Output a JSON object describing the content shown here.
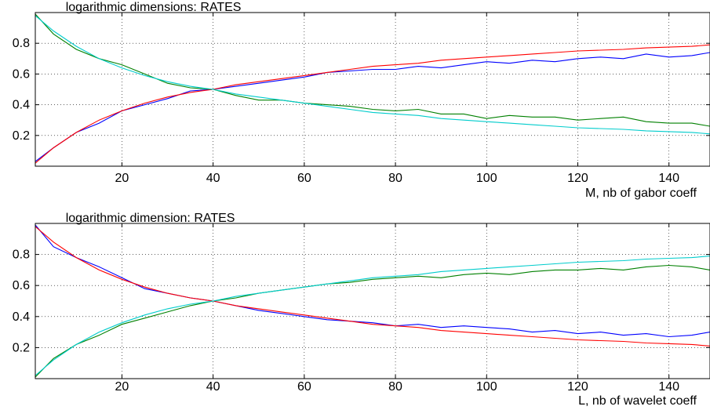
{
  "chart_data": [
    {
      "type": "line",
      "title": "logarithmic dimensions: RATES",
      "xlabel": "M, nb of gabor coeff",
      "ylabel": "",
      "xlim": [
        1,
        149
      ],
      "ylim": [
        0,
        1
      ],
      "xticks": [
        20,
        40,
        60,
        80,
        100,
        120,
        140
      ],
      "yticks": [
        0.2,
        0.4,
        0.6,
        0.8
      ],
      "grid": true,
      "series": [
        {
          "color": "#0000ff",
          "x": [
            1,
            5,
            10,
            15,
            20,
            25,
            30,
            35,
            40,
            45,
            50,
            55,
            60,
            65,
            70,
            75,
            80,
            85,
            90,
            95,
            100,
            105,
            110,
            115,
            120,
            125,
            130,
            135,
            140,
            145,
            149
          ],
          "values": [
            0.03,
            0.12,
            0.22,
            0.28,
            0.36,
            0.4,
            0.44,
            0.49,
            0.5,
            0.52,
            0.54,
            0.56,
            0.58,
            0.61,
            0.62,
            0.63,
            0.63,
            0.65,
            0.64,
            0.66,
            0.68,
            0.67,
            0.69,
            0.68,
            0.7,
            0.71,
            0.7,
            0.73,
            0.71,
            0.72,
            0.74
          ]
        },
        {
          "color": "#ff0000",
          "x": [
            1,
            5,
            10,
            15,
            20,
            25,
            30,
            35,
            40,
            45,
            50,
            55,
            60,
            65,
            70,
            75,
            80,
            85,
            90,
            95,
            100,
            105,
            110,
            115,
            120,
            125,
            130,
            135,
            140,
            145,
            149
          ],
          "values": [
            0.02,
            0.12,
            0.22,
            0.3,
            0.36,
            0.41,
            0.45,
            0.48,
            0.5,
            0.53,
            0.55,
            0.57,
            0.59,
            0.61,
            0.63,
            0.65,
            0.66,
            0.67,
            0.69,
            0.7,
            0.71,
            0.72,
            0.73,
            0.74,
            0.75,
            0.755,
            0.76,
            0.77,
            0.775,
            0.78,
            0.79
          ]
        },
        {
          "color": "#008000",
          "x": [
            1,
            5,
            10,
            15,
            20,
            25,
            30,
            35,
            40,
            45,
            50,
            55,
            60,
            65,
            70,
            75,
            80,
            85,
            90,
            95,
            100,
            105,
            110,
            115,
            120,
            125,
            130,
            135,
            140,
            145,
            149
          ],
          "values": [
            0.99,
            0.86,
            0.76,
            0.7,
            0.66,
            0.6,
            0.54,
            0.51,
            0.5,
            0.46,
            0.43,
            0.43,
            0.41,
            0.4,
            0.39,
            0.37,
            0.36,
            0.37,
            0.34,
            0.34,
            0.31,
            0.33,
            0.32,
            0.32,
            0.3,
            0.31,
            0.32,
            0.29,
            0.28,
            0.28,
            0.26
          ]
        },
        {
          "color": "#00cccc",
          "x": [
            1,
            5,
            10,
            15,
            20,
            25,
            30,
            35,
            40,
            45,
            50,
            55,
            60,
            65,
            70,
            75,
            80,
            85,
            90,
            95,
            100,
            105,
            110,
            115,
            120,
            125,
            130,
            135,
            140,
            145,
            149
          ],
          "values": [
            0.98,
            0.88,
            0.78,
            0.7,
            0.64,
            0.59,
            0.55,
            0.52,
            0.5,
            0.47,
            0.45,
            0.43,
            0.41,
            0.39,
            0.37,
            0.35,
            0.34,
            0.33,
            0.31,
            0.3,
            0.29,
            0.28,
            0.27,
            0.26,
            0.25,
            0.245,
            0.24,
            0.23,
            0.225,
            0.22,
            0.21
          ]
        }
      ]
    },
    {
      "type": "line",
      "title": "logarithmic dimension: RATES",
      "xlabel": "L, nb of wavelet coeff",
      "ylabel": "",
      "xlim": [
        1,
        149
      ],
      "ylim": [
        0,
        1
      ],
      "xticks": [
        20,
        40,
        60,
        80,
        100,
        120,
        140
      ],
      "yticks": [
        0.2,
        0.4,
        0.6,
        0.8
      ],
      "grid": true,
      "series": [
        {
          "color": "#0000ff",
          "x": [
            1,
            5,
            10,
            15,
            20,
            25,
            30,
            35,
            40,
            45,
            50,
            55,
            60,
            65,
            70,
            75,
            80,
            85,
            90,
            95,
            100,
            105,
            110,
            115,
            120,
            125,
            130,
            135,
            140,
            145,
            149
          ],
          "values": [
            0.99,
            0.85,
            0.78,
            0.72,
            0.65,
            0.58,
            0.55,
            0.52,
            0.5,
            0.47,
            0.44,
            0.42,
            0.4,
            0.38,
            0.37,
            0.36,
            0.34,
            0.35,
            0.33,
            0.34,
            0.33,
            0.32,
            0.3,
            0.31,
            0.29,
            0.3,
            0.28,
            0.29,
            0.27,
            0.28,
            0.3
          ]
        },
        {
          "color": "#ff0000",
          "x": [
            1,
            5,
            10,
            15,
            20,
            25,
            30,
            35,
            40,
            45,
            50,
            55,
            60,
            65,
            70,
            75,
            80,
            85,
            90,
            95,
            100,
            105,
            110,
            115,
            120,
            125,
            130,
            135,
            140,
            145,
            149
          ],
          "values": [
            0.98,
            0.88,
            0.78,
            0.7,
            0.64,
            0.59,
            0.55,
            0.52,
            0.5,
            0.47,
            0.45,
            0.43,
            0.41,
            0.39,
            0.37,
            0.35,
            0.34,
            0.33,
            0.31,
            0.3,
            0.29,
            0.28,
            0.27,
            0.26,
            0.25,
            0.245,
            0.24,
            0.23,
            0.225,
            0.22,
            0.21
          ]
        },
        {
          "color": "#008000",
          "x": [
            1,
            5,
            10,
            15,
            20,
            25,
            30,
            35,
            40,
            45,
            50,
            55,
            60,
            65,
            70,
            75,
            80,
            85,
            90,
            95,
            100,
            105,
            110,
            115,
            120,
            125,
            130,
            135,
            140,
            145,
            149
          ],
          "values": [
            0.01,
            0.13,
            0.22,
            0.28,
            0.35,
            0.39,
            0.43,
            0.47,
            0.5,
            0.52,
            0.55,
            0.57,
            0.59,
            0.61,
            0.62,
            0.64,
            0.65,
            0.66,
            0.65,
            0.67,
            0.68,
            0.67,
            0.69,
            0.7,
            0.7,
            0.71,
            0.7,
            0.72,
            0.73,
            0.72,
            0.7
          ]
        },
        {
          "color": "#00cccc",
          "x": [
            1,
            5,
            10,
            15,
            20,
            25,
            30,
            35,
            40,
            45,
            50,
            55,
            60,
            65,
            70,
            75,
            80,
            85,
            90,
            95,
            100,
            105,
            110,
            115,
            120,
            125,
            130,
            135,
            140,
            145,
            149
          ],
          "values": [
            0.02,
            0.12,
            0.22,
            0.3,
            0.36,
            0.41,
            0.45,
            0.48,
            0.5,
            0.53,
            0.55,
            0.57,
            0.59,
            0.61,
            0.63,
            0.65,
            0.66,
            0.67,
            0.69,
            0.7,
            0.71,
            0.72,
            0.73,
            0.74,
            0.75,
            0.755,
            0.76,
            0.77,
            0.775,
            0.78,
            0.79
          ]
        }
      ]
    }
  ]
}
